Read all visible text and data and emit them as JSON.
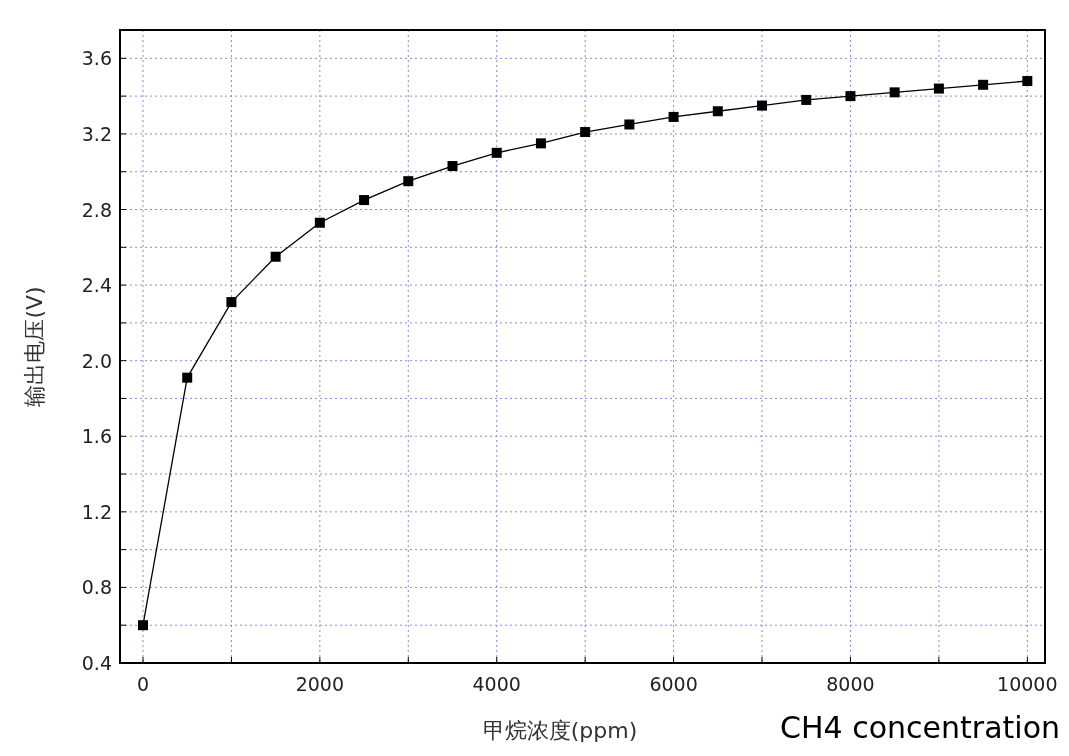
{
  "chart_data": {
    "type": "line",
    "xlabel": "甲烷浓度(ppm)",
    "ylabel": "输出电压(V)",
    "annotations": [
      "CH4 concentration"
    ],
    "x": [
      0,
      500,
      1000,
      1500,
      2000,
      2500,
      3000,
      3500,
      4000,
      4500,
      5000,
      5500,
      6000,
      6500,
      7000,
      7500,
      8000,
      8500,
      9000,
      9500,
      10000
    ],
    "series": [
      {
        "color": "#000000",
        "values": [
          0.6,
          1.91,
          2.31,
          2.55,
          2.73,
          2.85,
          2.95,
          3.03,
          3.1,
          3.15,
          3.21,
          3.25,
          3.29,
          3.32,
          3.35,
          3.38,
          3.4,
          3.42,
          3.44,
          3.46,
          3.48
        ]
      }
    ],
    "xlim": [
      -260,
      10200
    ],
    "xticks": [
      0,
      {
        "value": 1000,
        "label": null
      },
      2000,
      {
        "value": 3000,
        "label": null
      },
      4000,
      {
        "value": 5000,
        "label": null
      },
      6000,
      {
        "value": 7000,
        "label": null
      },
      8000,
      {
        "value": 9000,
        "label": null
      },
      10000
    ],
    "ylim": [
      0.4,
      3.75
    ],
    "yticks": [
      0.4,
      {
        "value": 0.6,
        "label": null
      },
      0.8,
      {
        "value": 1.0,
        "label": null
      },
      1.2,
      {
        "value": 1.4,
        "label": null
      },
      1.6,
      {
        "value": 1.8,
        "label": null
      },
      {
        "value": 2.0,
        "label": "2.0"
      },
      {
        "value": 2.2,
        "label": null
      },
      2.4,
      {
        "value": 2.6,
        "label": null
      },
      2.8,
      {
        "value": 3.0,
        "label": null
      },
      3.2,
      {
        "value": 3.4,
        "label": null
      },
      3.6
    ],
    "grid": true,
    "marker": "square",
    "line_style": "solid"
  }
}
